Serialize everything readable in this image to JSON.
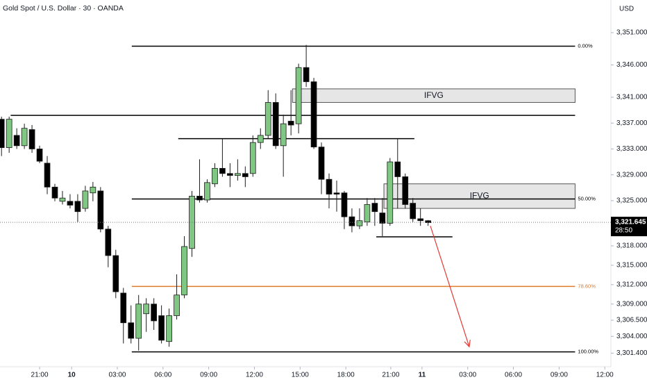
{
  "chart_data": {
    "type": "candlestick",
    "title": "Gold Spot / U.S. Dollar · 30 · OANDA",
    "currency": "USD",
    "x": [
      -5,
      -4,
      -3,
      -2,
      -1,
      0,
      1,
      2,
      3,
      4,
      5,
      6,
      7,
      8,
      9,
      10,
      11,
      12,
      13,
      14,
      15,
      16,
      17,
      18,
      19,
      20,
      21,
      22,
      23,
      24,
      25,
      26,
      27,
      28,
      29,
      30,
      31,
      32,
      33,
      34,
      35,
      36,
      37,
      38,
      39,
      40,
      41,
      42,
      43,
      44,
      45,
      46,
      47,
      48,
      49,
      50,
      51
    ],
    "open": [
      3337.6,
      3333.2,
      3335.1,
      3333.5,
      3336.0,
      3333.0,
      3330.8,
      3327.1,
      3324.9,
      3324.9,
      3324.9,
      3323.8,
      3326.2,
      3326.5,
      3320.6,
      3316.5,
      3310.7,
      3306.1,
      3303.7,
      3307.5,
      3309.0,
      3307.2,
      3303.2,
      3307.2,
      3310.4,
      3317.6,
      3325.7,
      3325.1,
      3327.6,
      3330.0,
      3329.2,
      3328.9,
      3329.2,
      3329.2,
      3334.0,
      3335.1,
      3340.2,
      3333.5,
      3337.3,
      3336.9,
      3345.6,
      3343.4,
      3333.3,
      3328.3,
      3326.2,
      3326.2,
      3322.5,
      3321.1,
      3321.7,
      3324.6,
      3323.1,
      3321.5,
      3331.0,
      3328.7,
      3324.6,
      3322.2,
      3321.9
    ],
    "high": [
      3338.0,
      3338.0,
      3336.2,
      3336.9,
      3336.7,
      3333.5,
      3331.9,
      3327.6,
      3326.5,
      3326.0,
      3326.0,
      3327.3,
      3327.9,
      3327.1,
      3321.1,
      3317.4,
      3311.5,
      3308.8,
      3310.4,
      3309.9,
      3309.9,
      3308.8,
      3308.3,
      3313.6,
      3319.5,
      3326.5,
      3331.4,
      3328.3,
      3330.8,
      3334.6,
      3330.8,
      3331.4,
      3330.3,
      3335.1,
      3336.2,
      3342.1,
      3341.6,
      3338.3,
      3342.1,
      3346.2,
      3349.1,
      3344.0,
      3334.0,
      3329.2,
      3328.1,
      3326.5,
      3323.8,
      3323.8,
      3325.4,
      3325.4,
      3325.4,
      3331.6,
      3334.6,
      3329.2,
      3325.4,
      3323.8,
      3322.0
    ],
    "low": [
      3331.9,
      3332.4,
      3333.0,
      3333.0,
      3332.4,
      3330.8,
      3326.0,
      3324.9,
      3324.4,
      3323.8,
      3321.7,
      3323.3,
      3324.9,
      3320.1,
      3314.7,
      3309.9,
      3302.9,
      3302.9,
      3301.8,
      3304.7,
      3305.0,
      3302.9,
      3302.4,
      3306.6,
      3309.9,
      3316.3,
      3324.7,
      3324.7,
      3327.1,
      3328.7,
      3327.1,
      3328.1,
      3327.1,
      3328.7,
      3333.0,
      3334.6,
      3333.0,
      3328.7,
      3335.1,
      3335.4,
      3342.6,
      3333.0,
      3326.0,
      3323.8,
      3323.3,
      3320.6,
      3320.1,
      3320.6,
      3321.1,
      3321.1,
      3319.5,
      3321.1,
      3323.8,
      3323.8,
      3321.7,
      3321.1,
      3321.1
    ],
    "close": [
      3333.2,
      3337.6,
      3333.5,
      3336.2,
      3333.0,
      3331.1,
      3327.1,
      3325.4,
      3325.4,
      3324.3,
      3323.3,
      3326.5,
      3327.1,
      3320.6,
      3316.5,
      3310.9,
      3306.1,
      3303.7,
      3309.0,
      3309.0,
      3306.4,
      3303.4,
      3307.2,
      3310.4,
      3317.9,
      3325.7,
      3325.1,
      3327.8,
      3330.0,
      3329.2,
      3328.9,
      3329.2,
      3328.7,
      3334.0,
      3335.1,
      3340.2,
      3333.5,
      3336.9,
      3336.7,
      3345.6,
      3343.4,
      3333.3,
      3328.3,
      3326.0,
      3326.0,
      3322.5,
      3321.1,
      3321.9,
      3324.4,
      3323.3,
      3321.5,
      3331.0,
      3328.7,
      3324.4,
      3322.2,
      3321.9,
      3321.6
    ],
    "up_color": "#81c784",
    "down_color": "#000000",
    "xlim": [
      -5.2,
      75
    ],
    "ylim": [
      3299.3,
      3356.05
    ],
    "xticks": [
      {
        "value": 0,
        "label": "21:00"
      },
      {
        "value": 4.2,
        "label": "10"
      },
      {
        "value": 10.2,
        "label": "03:00"
      },
      {
        "value": 16.2,
        "label": "06:00"
      },
      {
        "value": 22.2,
        "label": "09:00"
      },
      {
        "value": 28.2,
        "label": "12:00"
      },
      {
        "value": 34.2,
        "label": "15:00"
      },
      {
        "value": 40.2,
        "label": "18:00"
      },
      {
        "value": 46.1,
        "label": "21:00"
      },
      {
        "value": 50.2,
        "label": "11"
      },
      {
        "value": 56.2,
        "label": "03:00"
      },
      {
        "value": 62.2,
        "label": "06:00"
      },
      {
        "value": 68.2,
        "label": "09:00"
      },
      {
        "value": 74.2,
        "label": "12:00"
      }
    ],
    "yticks": [
      {
        "value": 3351,
        "label": "3,351.000"
      },
      {
        "value": 3346,
        "label": "3,346.000"
      },
      {
        "value": 3341,
        "label": "3,341.000"
      },
      {
        "value": 3337,
        "label": "3,337.000"
      },
      {
        "value": 3333,
        "label": "3,333.000"
      },
      {
        "value": 3329,
        "label": "3,329.000"
      },
      {
        "value": 3325,
        "label": "3,325.000"
      },
      {
        "value": 3318,
        "label": "3,318.000"
      },
      {
        "value": 3315,
        "label": "3,315.000"
      },
      {
        "value": 3312,
        "label": "3,312.000"
      },
      {
        "value": 3309,
        "label": "3,309.000"
      },
      {
        "value": 3306.5,
        "label": "3,306.500"
      },
      {
        "value": 3304,
        "label": "3,304.000"
      },
      {
        "value": 3301.4,
        "label": "3,301.400"
      }
    ],
    "last_price": {
      "value": 3321.645,
      "label": "3,321.645",
      "countdown": "28:50"
    },
    "fib": {
      "from": 3348.9,
      "to": 3301.6,
      "x": [
        12.1,
        70.3
      ],
      "levels": [
        {
          "ratio": 0,
          "label": "0.00%",
          "color": "#000000"
        },
        {
          "ratio": 50,
          "label": "50.00%",
          "color": "#000000"
        },
        {
          "ratio": 78.6,
          "label": "78.60%",
          "color": "#e07b2a"
        },
        {
          "ratio": 100,
          "label": "100.00%",
          "color": "#000000"
        }
      ]
    },
    "hlines": [
      {
        "value": 3338.2,
        "x": [
          -3.8,
          70.3
        ]
      },
      {
        "value": 3334.6,
        "x": [
          18.2,
          49.2
        ]
      },
      {
        "value": 3319.4,
        "x": [
          44.2,
          54.2
        ]
      }
    ],
    "boxes": [
      {
        "label": "IFVG",
        "top": 3342.3,
        "bottom": 3340.2,
        "x": [
          33.2,
          70.3
        ]
      },
      {
        "label": "IFVG",
        "top": 3327.6,
        "bottom": 3323.8,
        "x": [
          45.2,
          70.3
        ]
      }
    ],
    "arrow": {
      "x": [
        51.3,
        56.4
      ],
      "y": [
        3321.1,
        3302.4
      ],
      "color": "#e53935"
    }
  }
}
